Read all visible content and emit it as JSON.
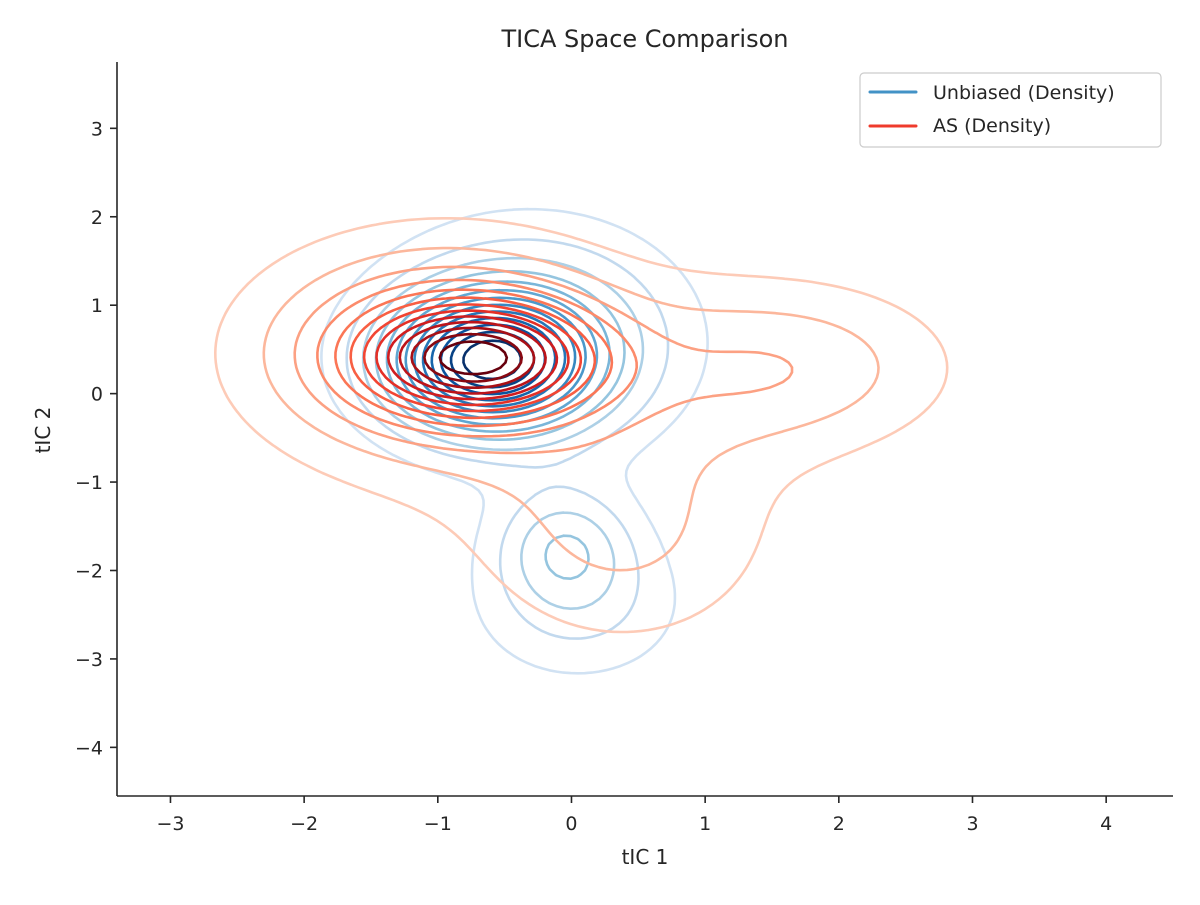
{
  "chart_data": {
    "type": "contour",
    "title": "TICA Space Comparison",
    "xlabel": "tIC 1",
    "ylabel": "tIC 2",
    "xlim": [
      -3.4,
      4.5
    ],
    "ylim": [
      -4.55,
      3.75
    ],
    "xticks": [
      -3,
      -2,
      -1,
      0,
      1,
      2,
      3,
      4
    ],
    "yticks": [
      -4,
      -3,
      -2,
      -1,
      0,
      1,
      2,
      3
    ],
    "grid": false,
    "legend_position": "top-right",
    "series": [
      {
        "name": "Unbiased (Density)",
        "colormap": "Blues",
        "legend_color": "#4292c6",
        "contour_levels": 13,
        "density_components": [
          {
            "weight": 1.0,
            "mx": -0.65,
            "my": 0.35,
            "sx": 0.5,
            "sy": 0.5
          },
          {
            "weight": 0.45,
            "mx": -0.3,
            "my": 0.6,
            "sx": 0.75,
            "sy": 0.85
          },
          {
            "weight": 0.3,
            "mx": -0.05,
            "my": -1.7,
            "sx": 0.35,
            "sy": 0.45
          },
          {
            "weight": 0.22,
            "mx": 0.05,
            "my": -2.4,
            "sx": 0.55,
            "sy": 0.6
          },
          {
            "weight": 0.05,
            "mx": 1.7,
            "my": 0.3,
            "sx": 0.15,
            "sy": 0.15
          }
        ]
      },
      {
        "name": "AS (Density)",
        "colormap": "Reds",
        "legend_color": "#ef3b2c",
        "contour_levels": 13,
        "density_components": [
          {
            "weight": 1.0,
            "mx": -0.7,
            "my": 0.4,
            "sx": 0.55,
            "sy": 0.4
          },
          {
            "weight": 0.55,
            "mx": -1.0,
            "my": 0.5,
            "sx": 0.9,
            "sy": 0.8
          },
          {
            "weight": 0.3,
            "mx": 1.6,
            "my": 0.3,
            "sx": 0.85,
            "sy": 0.65
          },
          {
            "weight": 0.22,
            "mx": 0.4,
            "my": -1.6,
            "sx": 0.75,
            "sy": 0.9
          },
          {
            "weight": 0.1,
            "mx": -0.2,
            "my": -0.2,
            "sx": 1.3,
            "sy": 1.2
          }
        ]
      }
    ]
  }
}
